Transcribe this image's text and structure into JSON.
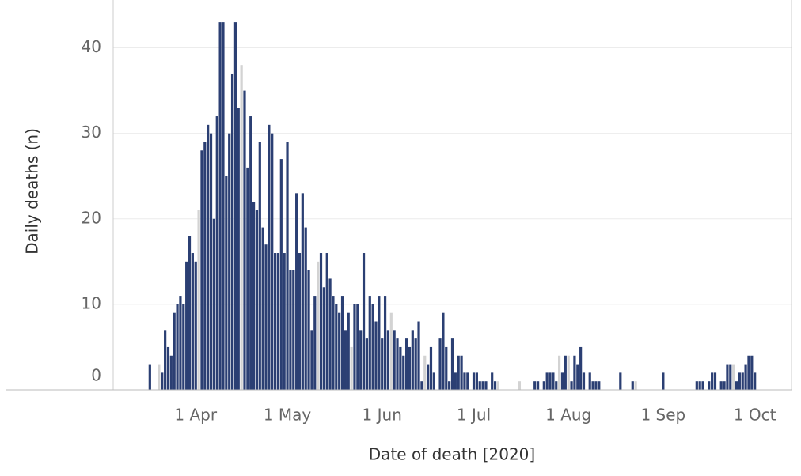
{
  "chart_data": {
    "type": "bar",
    "xlabel": "Date of death [2020]",
    "ylabel": "Daily deaths (n)",
    "x": [
      "2020-03-17",
      "2020-03-20",
      "2020-03-21",
      "2020-03-22",
      "2020-03-23",
      "2020-03-24",
      "2020-03-25",
      "2020-03-26",
      "2020-03-27",
      "2020-03-28",
      "2020-03-29",
      "2020-03-30",
      "2020-03-31",
      "2020-04-01",
      "2020-04-02",
      "2020-04-03",
      "2020-04-04",
      "2020-04-05",
      "2020-04-06",
      "2020-04-07",
      "2020-04-08",
      "2020-04-09",
      "2020-04-10",
      "2020-04-11",
      "2020-04-12",
      "2020-04-13",
      "2020-04-14",
      "2020-04-15",
      "2020-04-16",
      "2020-04-17",
      "2020-04-18",
      "2020-04-19",
      "2020-04-20",
      "2020-04-21",
      "2020-04-22",
      "2020-04-23",
      "2020-04-24",
      "2020-04-25",
      "2020-04-26",
      "2020-04-27",
      "2020-04-28",
      "2020-04-29",
      "2020-04-30",
      "2020-05-01",
      "2020-05-02",
      "2020-05-03",
      "2020-05-04",
      "2020-05-05",
      "2020-05-06",
      "2020-05-07",
      "2020-05-08",
      "2020-05-09",
      "2020-05-10",
      "2020-05-11",
      "2020-05-12",
      "2020-05-13",
      "2020-05-14",
      "2020-05-15",
      "2020-05-16",
      "2020-05-17",
      "2020-05-18",
      "2020-05-19",
      "2020-05-20",
      "2020-05-21",
      "2020-05-22",
      "2020-05-23",
      "2020-05-24",
      "2020-05-25",
      "2020-05-26",
      "2020-05-27",
      "2020-05-28",
      "2020-05-29",
      "2020-05-30",
      "2020-05-31",
      "2020-06-01",
      "2020-06-02",
      "2020-06-03",
      "2020-06-04",
      "2020-06-05",
      "2020-06-06",
      "2020-06-07",
      "2020-06-08",
      "2020-06-09",
      "2020-06-10",
      "2020-06-11",
      "2020-06-12",
      "2020-06-13",
      "2020-06-14",
      "2020-06-15",
      "2020-06-16",
      "2020-06-17",
      "2020-06-18",
      "2020-06-20",
      "2020-06-21",
      "2020-06-22",
      "2020-06-23",
      "2020-06-24",
      "2020-06-25",
      "2020-06-26",
      "2020-06-27",
      "2020-06-28",
      "2020-06-29",
      "2020-07-01",
      "2020-07-02",
      "2020-07-03",
      "2020-07-04",
      "2020-07-05",
      "2020-07-07",
      "2020-07-08",
      "2020-07-09",
      "2020-07-16",
      "2020-07-21",
      "2020-07-22",
      "2020-07-24",
      "2020-07-25",
      "2020-07-26",
      "2020-07-27",
      "2020-07-28",
      "2020-07-29",
      "2020-07-30",
      "2020-07-31",
      "2020-08-01",
      "2020-08-02",
      "2020-08-03",
      "2020-08-04",
      "2020-08-05",
      "2020-08-06",
      "2020-08-08",
      "2020-08-09",
      "2020-08-10",
      "2020-08-11",
      "2020-08-18",
      "2020-08-22",
      "2020-08-23",
      "2020-09-01",
      "2020-09-12",
      "2020-09-13",
      "2020-09-14",
      "2020-09-16",
      "2020-09-17",
      "2020-09-18",
      "2020-09-20",
      "2020-09-21",
      "2020-09-22",
      "2020-09-23",
      "2020-09-24",
      "2020-09-25",
      "2020-09-26",
      "2020-09-27",
      "2020-09-28",
      "2020-09-29",
      "2020-09-30",
      "2020-10-01"
    ],
    "series": [
      {
        "color": "#d3d3d3",
        "values": [
          null,
          3,
          null,
          null,
          null,
          null,
          null,
          null,
          null,
          null,
          null,
          null,
          null,
          null,
          21,
          null,
          null,
          null,
          null,
          null,
          null,
          null,
          null,
          null,
          null,
          null,
          null,
          null,
          38,
          null,
          null,
          null,
          null,
          null,
          null,
          null,
          null,
          null,
          null,
          null,
          null,
          null,
          null,
          null,
          null,
          null,
          null,
          null,
          null,
          null,
          null,
          null,
          null,
          15,
          null,
          null,
          null,
          null,
          null,
          null,
          null,
          null,
          null,
          null,
          5,
          null,
          null,
          null,
          null,
          null,
          null,
          null,
          null,
          null,
          null,
          null,
          null,
          9,
          null,
          null,
          null,
          null,
          null,
          null,
          null,
          null,
          null,
          null,
          4,
          null,
          null,
          null,
          null,
          null,
          null,
          null,
          null,
          null,
          null,
          null,
          null,
          null,
          null,
          null,
          null,
          null,
          null,
          null,
          null,
          1,
          1,
          null,
          null,
          null,
          null,
          null,
          null,
          null,
          4,
          null,
          null,
          4,
          null,
          null,
          null,
          null,
          null,
          null,
          null,
          null,
          null,
          null,
          null,
          1,
          null,
          null,
          null,
          null,
          null,
          null,
          null,
          null,
          null,
          null,
          null,
          3,
          null,
          null,
          null,
          null,
          null,
          null,
          null
        ]
      },
      {
        "color": "#2b3f73",
        "values": [
          3,
          null,
          2,
          7,
          5,
          4,
          9,
          10,
          11,
          10,
          15,
          18,
          16,
          15,
          null,
          28,
          29,
          31,
          30,
          20,
          32,
          43,
          43,
          25,
          30,
          37,
          43,
          33,
          null,
          35,
          26,
          32,
          22,
          21,
          29,
          19,
          17,
          31,
          30,
          16,
          16,
          27,
          16,
          29,
          14,
          14,
          23,
          16,
          23,
          19,
          14,
          7,
          11,
          null,
          16,
          12,
          16,
          13,
          11,
          10,
          9,
          11,
          7,
          9,
          null,
          10,
          10,
          7,
          16,
          6,
          11,
          10,
          8,
          11,
          6,
          11,
          7,
          null,
          7,
          6,
          5,
          4,
          6,
          5,
          7,
          6,
          8,
          1,
          null,
          3,
          5,
          2,
          6,
          9,
          5,
          1,
          6,
          2,
          4,
          4,
          2,
          2,
          2,
          2,
          1,
          1,
          1,
          2,
          1,
          null,
          null,
          1,
          1,
          1,
          2,
          2,
          2,
          1,
          null,
          2,
          4,
          null,
          1,
          4,
          3,
          5,
          2,
          2,
          1,
          1,
          1,
          2,
          1,
          null,
          2,
          1,
          1,
          1,
          1,
          2,
          2,
          1,
          1,
          3,
          3,
          null,
          1,
          2,
          2,
          3,
          4,
          4,
          2
        ]
      }
    ],
    "xlim": [
      "2020-03-05",
      "2020-10-13"
    ],
    "xticks": [
      {
        "value": "2020-04-01",
        "label": "1 Apr"
      },
      {
        "value": "2020-05-01",
        "label": "1 May"
      },
      {
        "value": "2020-06-01",
        "label": "1 Jun"
      },
      {
        "value": "2020-07-01",
        "label": "1 Jul"
      },
      {
        "value": "2020-08-01",
        "label": "1 Aug"
      },
      {
        "value": "2020-09-01",
        "label": "1 Sep"
      },
      {
        "value": "2020-10-01",
        "label": "1 Oct"
      }
    ],
    "ylim": [
      0,
      45.6
    ],
    "yticks": [
      0,
      10,
      20,
      30,
      40
    ],
    "grid": true
  }
}
